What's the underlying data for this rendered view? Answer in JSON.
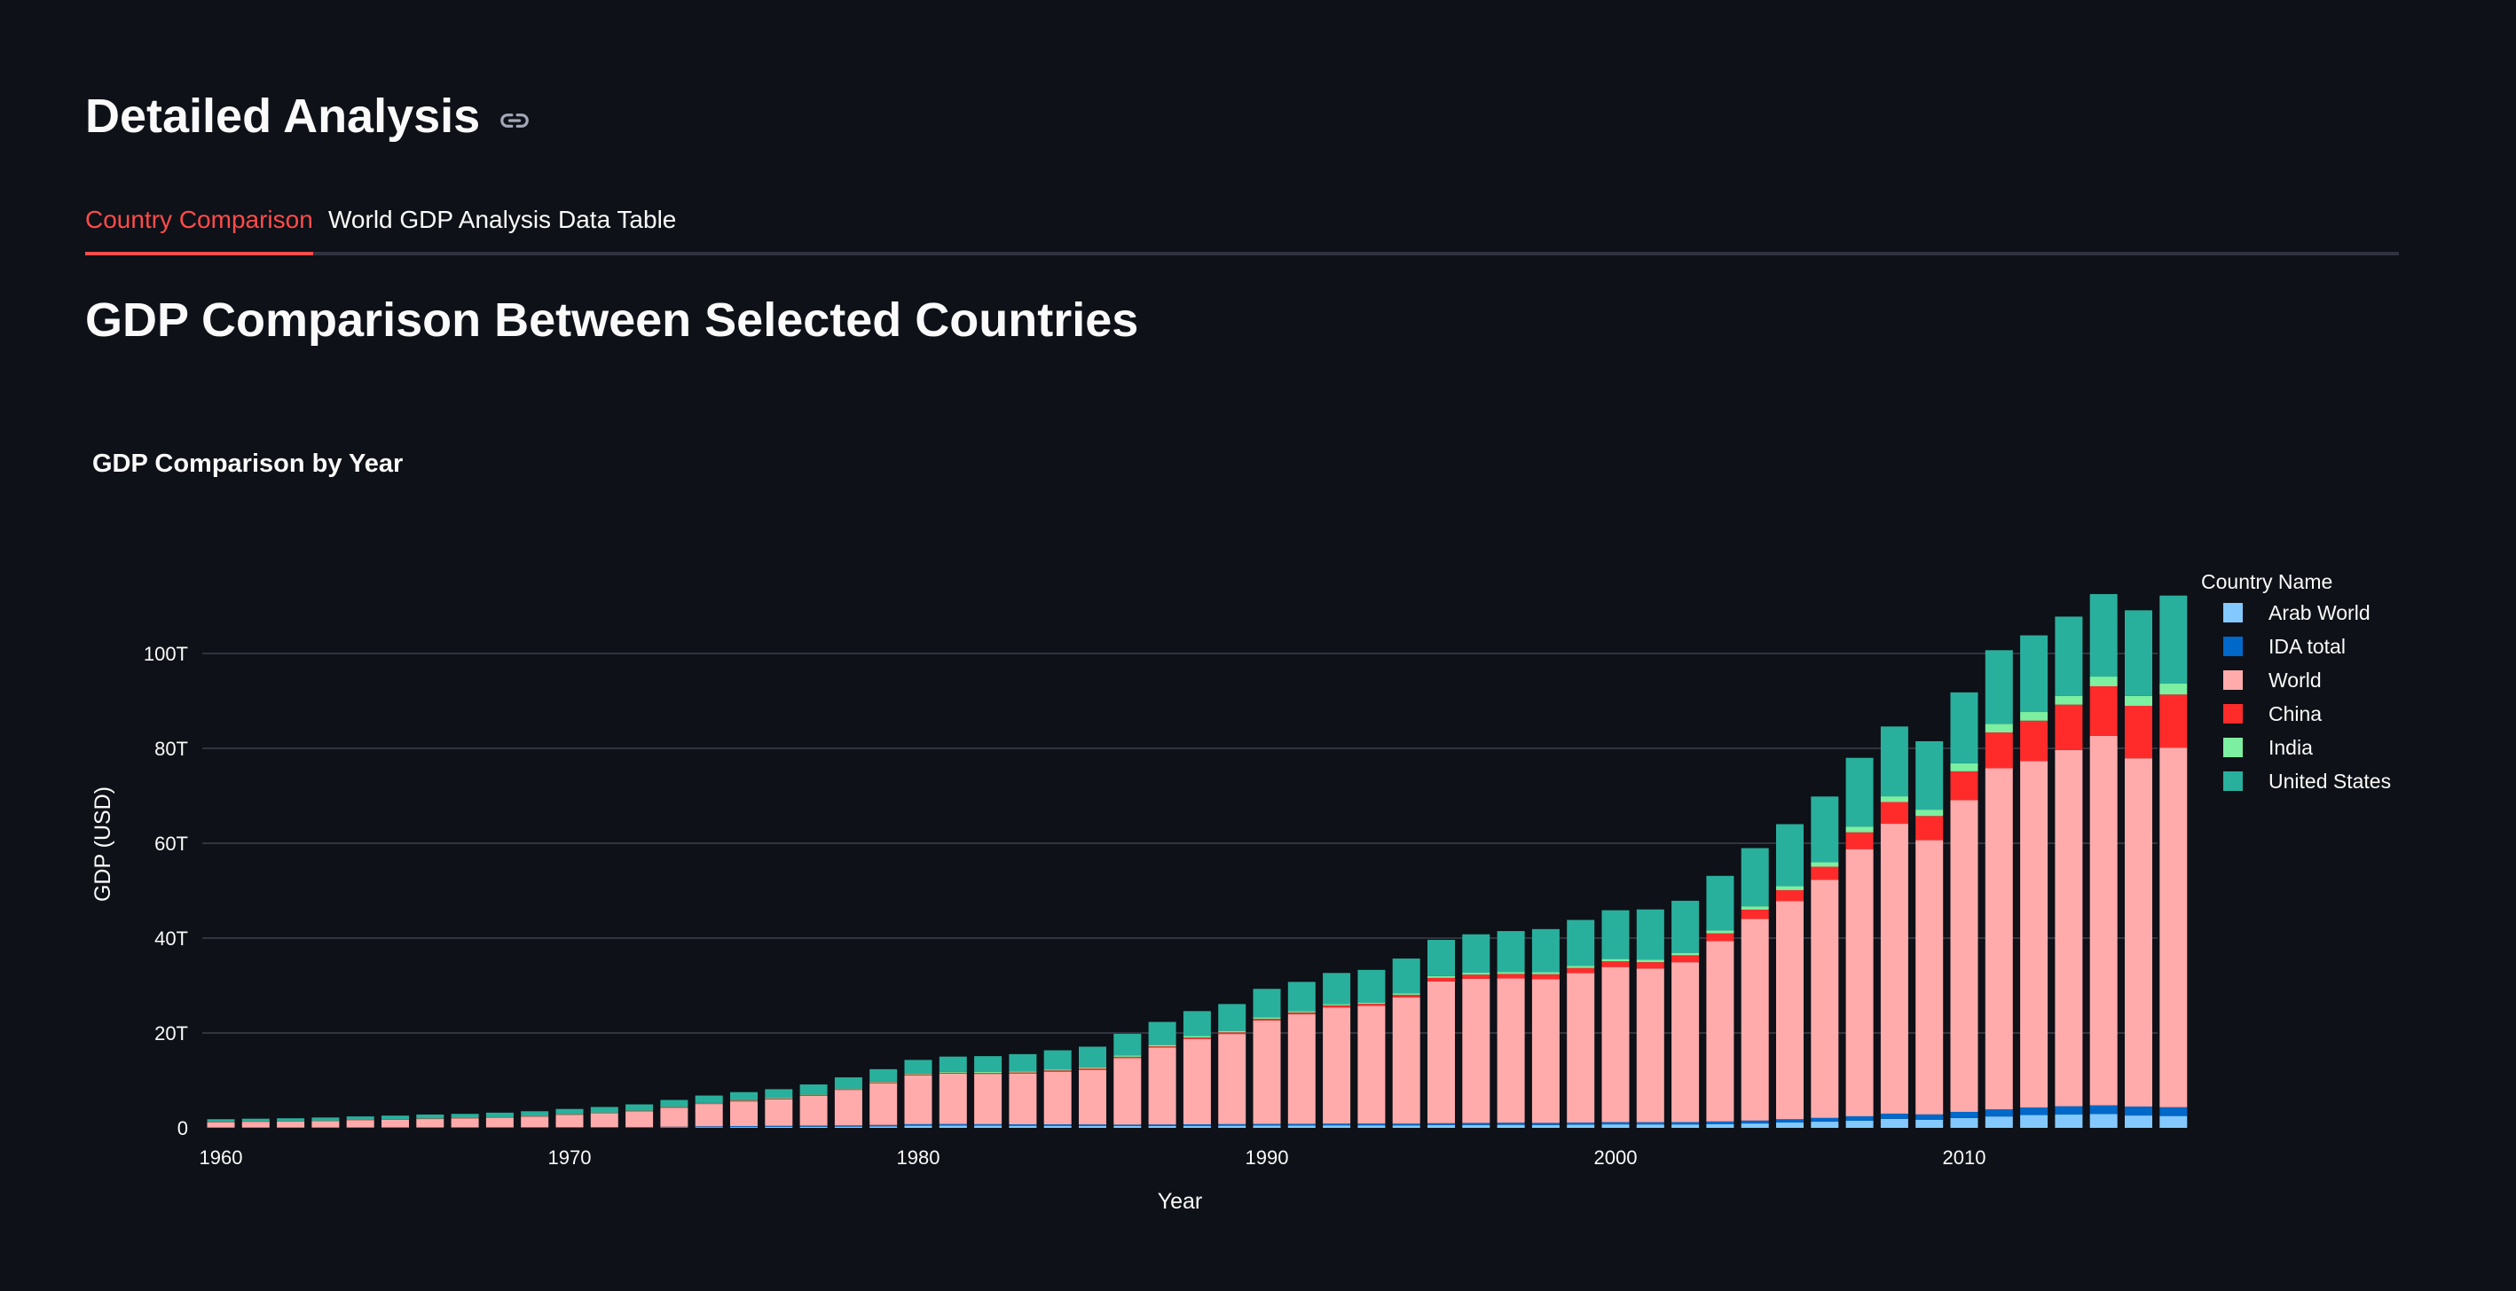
{
  "header": {
    "title": "Detailed Analysis",
    "link_icon": "link-icon"
  },
  "tabs": [
    {
      "label": "Country Comparison",
      "active": true
    },
    {
      "label": "World GDP Analysis",
      "active": false
    },
    {
      "label": "Data Table",
      "active": false
    }
  ],
  "section": {
    "title": "GDP Comparison Between Selected Countries"
  },
  "colors": {
    "accent": "#ff4b4b",
    "background": "#0e1117",
    "Arab World": "#83c9ff",
    "IDA total": "#0068c9",
    "World": "#ffabab",
    "China": "#ff2b2b",
    "India": "#7defa1",
    "United States": "#29b09d"
  },
  "chart_data": {
    "type": "bar",
    "stacked": true,
    "title": "GDP Comparison by Year",
    "xlabel": "Year",
    "ylabel": "GDP (USD)",
    "legend_title": "Country Name",
    "legend_position": "right",
    "grid": true,
    "ylim": [
      0,
      118
    ],
    "y_ticks": [
      {
        "value": 0,
        "label": "0"
      },
      {
        "value": 20,
        "label": "20T"
      },
      {
        "value": 40,
        "label": "40T"
      },
      {
        "value": 60,
        "label": "60T"
      },
      {
        "value": 80,
        "label": "80T"
      },
      {
        "value": 100,
        "label": "100T"
      }
    ],
    "x_ticks": [
      {
        "value": 1960,
        "label": "1960"
      },
      {
        "value": 1970,
        "label": "1970"
      },
      {
        "value": 1980,
        "label": "1980"
      },
      {
        "value": 1990,
        "label": "1990"
      },
      {
        "value": 2000,
        "label": "2000"
      },
      {
        "value": 2010,
        "label": "2010"
      }
    ],
    "value_unit": "trillion USD",
    "years": [
      1960,
      1961,
      1962,
      1963,
      1964,
      1965,
      1966,
      1967,
      1968,
      1969,
      1970,
      1971,
      1972,
      1973,
      1974,
      1975,
      1976,
      1977,
      1978,
      1979,
      1980,
      1981,
      1982,
      1983,
      1984,
      1985,
      1986,
      1987,
      1988,
      1989,
      1990,
      1991,
      1992,
      1993,
      1994,
      1995,
      1996,
      1997,
      1998,
      1999,
      2000,
      2001,
      2002,
      2003,
      2004,
      2005,
      2006,
      2007,
      2008,
      2009,
      2010,
      2011,
      2012,
      2013,
      2014,
      2015,
      2016
    ],
    "series": [
      {
        "name": "Arab World",
        "values": [
          0.02,
          0.02,
          0.02,
          0.02,
          0.03,
          0.03,
          0.03,
          0.03,
          0.04,
          0.04,
          0.05,
          0.05,
          0.06,
          0.08,
          0.15,
          0.17,
          0.2,
          0.23,
          0.25,
          0.32,
          0.45,
          0.48,
          0.46,
          0.44,
          0.43,
          0.42,
          0.38,
          0.4,
          0.42,
          0.45,
          0.5,
          0.5,
          0.53,
          0.53,
          0.52,
          0.56,
          0.6,
          0.63,
          0.6,
          0.65,
          0.73,
          0.72,
          0.72,
          0.8,
          0.92,
          1.12,
          1.3,
          1.5,
          1.9,
          1.72,
          2.07,
          2.4,
          2.7,
          2.8,
          2.9,
          2.6,
          2.5
        ]
      },
      {
        "name": "IDA total",
        "values": [
          0.06,
          0.06,
          0.06,
          0.07,
          0.07,
          0.08,
          0.08,
          0.09,
          0.09,
          0.1,
          0.11,
          0.12,
          0.13,
          0.15,
          0.18,
          0.21,
          0.22,
          0.25,
          0.26,
          0.29,
          0.33,
          0.33,
          0.32,
          0.31,
          0.31,
          0.3,
          0.3,
          0.31,
          0.33,
          0.34,
          0.34,
          0.35,
          0.36,
          0.37,
          0.37,
          0.42,
          0.44,
          0.46,
          0.45,
          0.46,
          0.47,
          0.47,
          0.49,
          0.55,
          0.62,
          0.7,
          0.8,
          0.95,
          1.1,
          1.12,
          1.3,
          1.5,
          1.6,
          1.75,
          1.85,
          1.9,
          1.85
        ]
      },
      {
        "name": "World",
        "values": [
          1.1,
          1.2,
          1.25,
          1.35,
          1.5,
          1.6,
          1.75,
          1.85,
          2.0,
          2.2,
          2.6,
          2.9,
          3.3,
          4.0,
          4.7,
          5.2,
          5.6,
          6.3,
          7.5,
          8.8,
          10.3,
          10.6,
          10.6,
          10.7,
          11.1,
          11.5,
          14.0,
          16.2,
          18.0,
          19.0,
          21.8,
          23.1,
          24.5,
          24.8,
          26.6,
          29.9,
          30.4,
          30.4,
          30.3,
          31.5,
          32.7,
          32.4,
          33.7,
          38.0,
          42.5,
          46.0,
          50.2,
          56.3,
          61.1,
          57.8,
          65.7,
          71.9,
          73.0,
          75.1,
          77.9,
          73.4,
          75.8
        ]
      },
      {
        "name": "China",
        "values": [
          0.06,
          0.05,
          0.05,
          0.05,
          0.06,
          0.07,
          0.08,
          0.07,
          0.07,
          0.08,
          0.09,
          0.1,
          0.11,
          0.14,
          0.14,
          0.16,
          0.15,
          0.17,
          0.15,
          0.18,
          0.19,
          0.2,
          0.2,
          0.23,
          0.26,
          0.31,
          0.3,
          0.27,
          0.31,
          0.35,
          0.36,
          0.38,
          0.43,
          0.44,
          0.56,
          0.73,
          0.86,
          0.96,
          1.03,
          1.09,
          1.21,
          1.34,
          1.47,
          1.66,
          1.96,
          2.29,
          2.75,
          3.55,
          4.59,
          5.1,
          6.09,
          7.55,
          8.53,
          9.57,
          10.44,
          11.06,
          11.2
        ]
      },
      {
        "name": "India",
        "values": [
          0.04,
          0.04,
          0.04,
          0.05,
          0.06,
          0.06,
          0.05,
          0.05,
          0.06,
          0.06,
          0.06,
          0.07,
          0.07,
          0.08,
          0.09,
          0.1,
          0.1,
          0.12,
          0.13,
          0.15,
          0.19,
          0.2,
          0.2,
          0.22,
          0.21,
          0.23,
          0.25,
          0.28,
          0.3,
          0.3,
          0.32,
          0.27,
          0.29,
          0.28,
          0.33,
          0.37,
          0.4,
          0.42,
          0.43,
          0.47,
          0.48,
          0.49,
          0.51,
          0.6,
          0.7,
          0.82,
          0.94,
          1.22,
          1.2,
          1.34,
          1.68,
          1.82,
          1.83,
          1.86,
          2.04,
          2.1,
          2.29
        ]
      },
      {
        "name": "United States",
        "values": [
          0.54,
          0.56,
          0.6,
          0.64,
          0.69,
          0.74,
          0.82,
          0.86,
          0.94,
          1.02,
          1.07,
          1.16,
          1.28,
          1.43,
          1.55,
          1.69,
          1.88,
          2.08,
          2.35,
          2.63,
          2.86,
          3.21,
          3.34,
          3.64,
          4.04,
          4.35,
          4.59,
          4.87,
          5.25,
          5.66,
          5.98,
          6.17,
          6.54,
          6.88,
          7.31,
          7.66,
          8.1,
          8.61,
          9.09,
          9.66,
          10.28,
          10.62,
          10.98,
          11.51,
          12.27,
          13.09,
          13.86,
          14.48,
          14.72,
          14.42,
          14.96,
          15.52,
          16.16,
          16.69,
          17.39,
          18.04,
          18.57
        ]
      }
    ]
  }
}
